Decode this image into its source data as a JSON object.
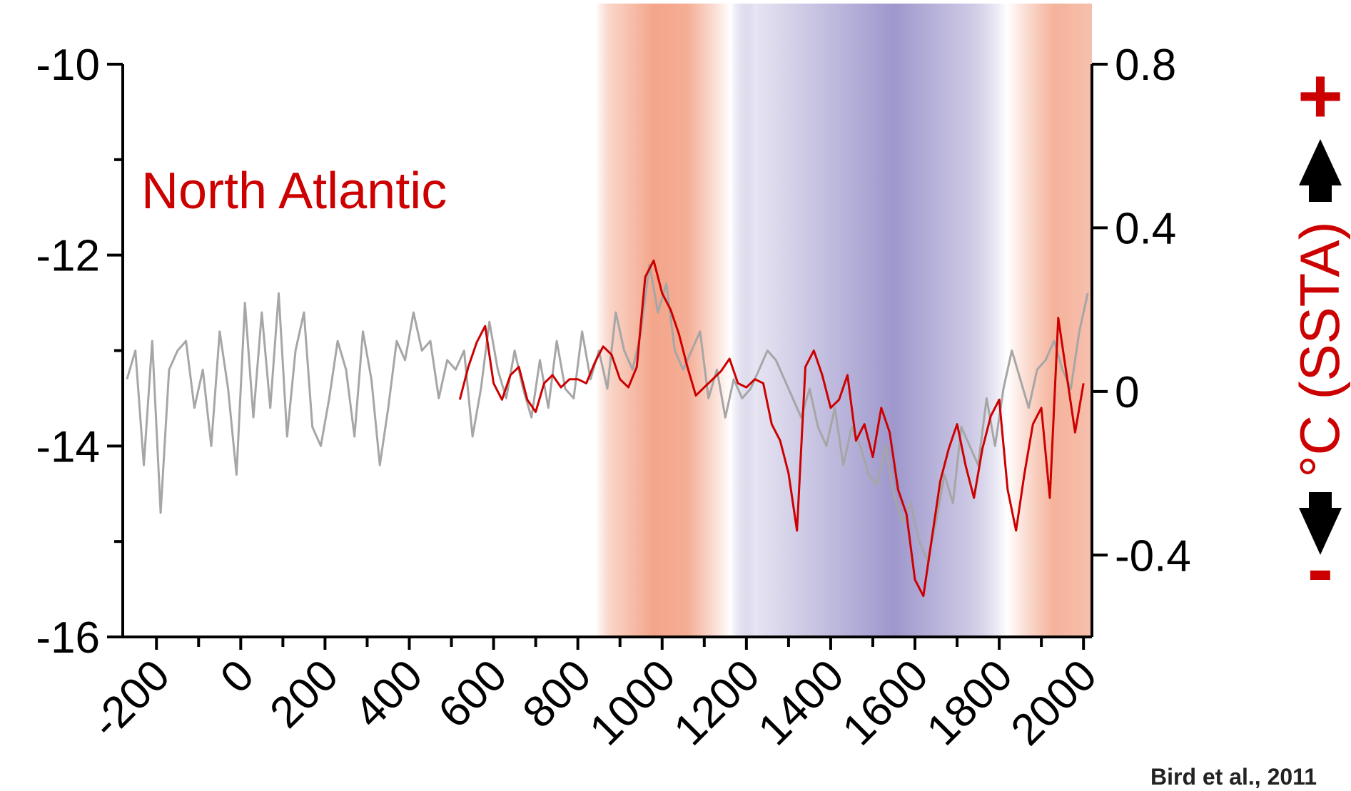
{
  "chart_data": {
    "type": "line",
    "title": "",
    "annotation": "North Atlantic",
    "credit": "Bird et al., 2011",
    "x_ticks": [
      -200,
      0,
      200,
      400,
      600,
      800,
      1000,
      1200,
      1400,
      1600,
      1800,
      2000
    ],
    "xlim": [
      -280,
      2020
    ],
    "left_axis": {
      "ticks": [
        -10,
        -12,
        -14,
        -16
      ],
      "ylim": [
        -16,
        -10
      ]
    },
    "right_axis": {
      "label": "°C (SSTA)",
      "ticks": [
        0.8,
        0.4,
        0,
        -0.4
      ],
      "ylim": [
        -0.6,
        0.8
      ]
    },
    "arrow_labels": {
      "plus": "+",
      "minus": "-"
    },
    "grid": false,
    "colors": {
      "warm": "#f3a58a",
      "cold": "#9e97cc",
      "grey_series": "#a6a6a6",
      "red_series": "#cc0000",
      "annotation": "#cc0000"
    },
    "bands": [
      {
        "type": "warm",
        "start": 860,
        "end": 1180
      },
      {
        "type": "cold",
        "start": 1180,
        "end": 1870
      },
      {
        "type": "warm",
        "start": 1870,
        "end": 2020
      }
    ],
    "series": [
      {
        "axis": "left",
        "color": "#a6a6a6",
        "x": [
          -270,
          -250,
          -230,
          -210,
          -190,
          -170,
          -150,
          -130,
          -110,
          -90,
          -70,
          -50,
          -30,
          -10,
          10,
          30,
          50,
          70,
          90,
          110,
          130,
          150,
          170,
          190,
          210,
          230,
          250,
          270,
          290,
          310,
          330,
          350,
          370,
          390,
          410,
          430,
          450,
          470,
          490,
          510,
          530,
          550,
          570,
          590,
          610,
          630,
          650,
          670,
          690,
          710,
          730,
          750,
          770,
          790,
          810,
          830,
          850,
          870,
          890,
          910,
          930,
          950,
          970,
          990,
          1010,
          1030,
          1050,
          1070,
          1090,
          1110,
          1130,
          1150,
          1170,
          1190,
          1210,
          1230,
          1250,
          1270,
          1290,
          1310,
          1330,
          1350,
          1370,
          1390,
          1410,
          1430,
          1450,
          1470,
          1490,
          1510,
          1530,
          1550,
          1570,
          1590,
          1610,
          1630,
          1650,
          1670,
          1690,
          1710,
          1730,
          1750,
          1770,
          1790,
          1810,
          1830,
          1850,
          1870,
          1890,
          1910,
          1930,
          1950,
          1970,
          1990,
          2010
        ],
        "y": [
          -13.3,
          -13.0,
          -14.2,
          -12.9,
          -14.7,
          -13.2,
          -13.0,
          -12.9,
          -13.6,
          -13.2,
          -14.0,
          -12.8,
          -13.4,
          -14.3,
          -12.5,
          -13.7,
          -12.6,
          -13.6,
          -12.4,
          -13.9,
          -13.0,
          -12.6,
          -13.8,
          -14.0,
          -13.5,
          -12.9,
          -13.2,
          -13.9,
          -12.8,
          -13.3,
          -14.2,
          -13.6,
          -12.9,
          -13.1,
          -12.6,
          -13.0,
          -12.9,
          -13.5,
          -13.1,
          -13.2,
          -13.0,
          -13.9,
          -13.4,
          -12.7,
          -13.2,
          -13.5,
          -13.0,
          -13.4,
          -13.7,
          -13.1,
          -13.6,
          -12.9,
          -13.4,
          -13.5,
          -12.8,
          -13.3,
          -13.0,
          -13.4,
          -12.6,
          -13.0,
          -13.2,
          -12.8,
          -12.1,
          -12.6,
          -12.3,
          -13.0,
          -13.2,
          -13.0,
          -12.8,
          -13.5,
          -13.2,
          -13.7,
          -13.3,
          -13.5,
          -13.4,
          -13.2,
          -13.0,
          -13.1,
          -13.3,
          -13.5,
          -13.7,
          -13.4,
          -13.8,
          -14.0,
          -13.6,
          -14.2,
          -13.8,
          -14.0,
          -14.3,
          -14.4,
          -14.0,
          -14.5,
          -14.8,
          -14.6,
          -15.0,
          -15.2,
          -14.8,
          -14.3,
          -14.6,
          -13.8,
          -14.0,
          -14.2,
          -13.5,
          -14.0,
          -13.4,
          -13.0,
          -13.3,
          -13.6,
          -13.2,
          -13.1,
          -12.9,
          -13.2,
          -13.4,
          -12.8,
          -12.4
        ]
      },
      {
        "axis": "right",
        "color": "#cc0000",
        "x": [
          520,
          540,
          560,
          580,
          600,
          620,
          640,
          660,
          680,
          700,
          720,
          740,
          760,
          780,
          800,
          820,
          840,
          860,
          880,
          900,
          920,
          940,
          960,
          980,
          1000,
          1020,
          1040,
          1060,
          1080,
          1100,
          1120,
          1140,
          1160,
          1180,
          1200,
          1220,
          1240,
          1260,
          1280,
          1300,
          1320,
          1340,
          1360,
          1380,
          1400,
          1420,
          1440,
          1460,
          1480,
          1500,
          1520,
          1540,
          1560,
          1580,
          1600,
          1620,
          1640,
          1660,
          1680,
          1700,
          1720,
          1740,
          1760,
          1780,
          1800,
          1820,
          1840,
          1860,
          1880,
          1900,
          1920,
          1940,
          1960,
          1980,
          2000
        ],
        "y": [
          -0.02,
          0.06,
          0.12,
          0.16,
          0.02,
          -0.02,
          0.04,
          0.06,
          -0.02,
          -0.05,
          0.02,
          0.04,
          0.01,
          0.03,
          0.03,
          0.02,
          0.07,
          0.11,
          0.09,
          0.03,
          0.01,
          0.06,
          0.28,
          0.32,
          0.24,
          0.2,
          0.14,
          0.06,
          -0.01,
          0.01,
          0.03,
          0.05,
          0.08,
          0.02,
          0.01,
          0.03,
          0.02,
          -0.08,
          -0.12,
          -0.2,
          -0.34,
          0.06,
          0.1,
          0.04,
          -0.04,
          -0.02,
          0.04,
          -0.12,
          -0.08,
          -0.16,
          -0.04,
          -0.1,
          -0.24,
          -0.3,
          -0.46,
          -0.5,
          -0.36,
          -0.22,
          -0.14,
          -0.08,
          -0.18,
          -0.26,
          -0.14,
          -0.06,
          -0.02,
          -0.24,
          -0.34,
          -0.2,
          -0.08,
          -0.04,
          -0.26,
          0.18,
          0.04,
          -0.1,
          0.02
        ]
      }
    ]
  }
}
